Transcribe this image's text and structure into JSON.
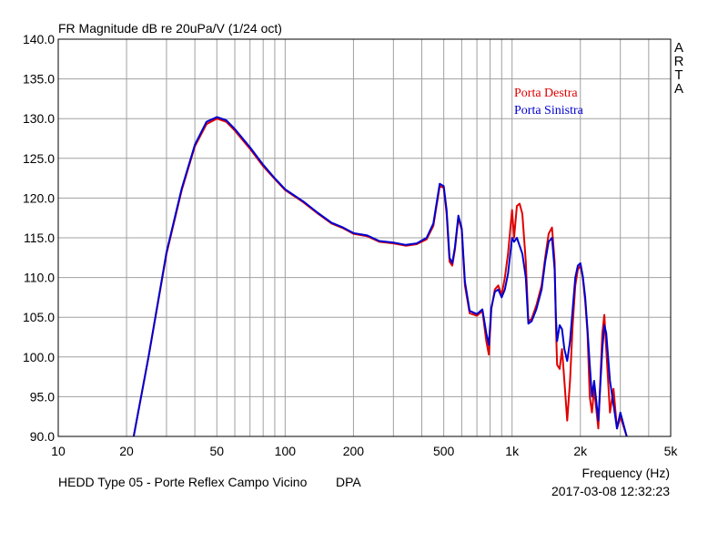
{
  "chart_data": {
    "type": "line",
    "title": "FR Magnitude dB re 20uPa/V (1/24 oct)",
    "xlabel": "Frequency (Hz)",
    "ylabel": "",
    "x_scale": "log",
    "xlim": [
      10,
      5000
    ],
    "ylim": [
      90,
      140
    ],
    "x_ticks": [
      10,
      20,
      50,
      100,
      200,
      500,
      1000,
      2000,
      5000
    ],
    "x_tick_labels": [
      "10",
      "20",
      "50",
      "100",
      "200",
      "500",
      "1k",
      "2k",
      "5k"
    ],
    "y_ticks": [
      90,
      95,
      100,
      105,
      110,
      115,
      120,
      125,
      130,
      135,
      140
    ],
    "y_tick_labels": [
      "90.0",
      "95.0",
      "100.0",
      "105.0",
      "110.0",
      "115.0",
      "120.0",
      "125.0",
      "130.0",
      "135.0",
      "140.0"
    ],
    "grid": true,
    "legend_position": "top-right",
    "series": [
      {
        "name": "Porta Destra",
        "color": "#e00000",
        "points": [
          [
            21.5,
            90
          ],
          [
            25,
            100
          ],
          [
            30,
            113
          ],
          [
            35,
            121
          ],
          [
            40,
            126.5
          ],
          [
            45,
            129.3
          ],
          [
            50,
            130
          ],
          [
            55,
            129.6
          ],
          [
            60,
            128.5
          ],
          [
            70,
            126.2
          ],
          [
            80,
            124
          ],
          [
            90,
            122.4
          ],
          [
            100,
            121
          ],
          [
            120,
            119.5
          ],
          [
            140,
            118
          ],
          [
            160,
            116.8
          ],
          [
            180,
            116.2
          ],
          [
            200,
            115.5
          ],
          [
            230,
            115.2
          ],
          [
            260,
            114.5
          ],
          [
            300,
            114.3
          ],
          [
            340,
            114
          ],
          [
            380,
            114.2
          ],
          [
            420,
            114.8
          ],
          [
            450,
            116.5
          ],
          [
            480,
            121.5
          ],
          [
            500,
            121.3
          ],
          [
            515,
            118
          ],
          [
            530,
            112
          ],
          [
            545,
            111.5
          ],
          [
            560,
            113.5
          ],
          [
            580,
            117.5
          ],
          [
            600,
            116
          ],
          [
            620,
            109
          ],
          [
            650,
            105.5
          ],
          [
            700,
            105.2
          ],
          [
            740,
            105.8
          ],
          [
            770,
            102
          ],
          [
            790,
            100.3
          ],
          [
            810,
            106
          ],
          [
            840,
            108.5
          ],
          [
            870,
            109
          ],
          [
            900,
            107.8
          ],
          [
            930,
            110
          ],
          [
            960,
            113
          ],
          [
            1000,
            118.5
          ],
          [
            1020,
            115
          ],
          [
            1050,
            119
          ],
          [
            1080,
            119.3
          ],
          [
            1110,
            118
          ],
          [
            1150,
            112
          ],
          [
            1180,
            104.5
          ],
          [
            1220,
            104.8
          ],
          [
            1280,
            106.5
          ],
          [
            1350,
            109
          ],
          [
            1400,
            112.5
          ],
          [
            1450,
            115.5
          ],
          [
            1500,
            116.3
          ],
          [
            1540,
            112
          ],
          [
            1560,
            104
          ],
          [
            1580,
            99
          ],
          [
            1620,
            98.5
          ],
          [
            1660,
            101
          ],
          [
            1700,
            97
          ],
          [
            1750,
            92
          ],
          [
            1800,
            97
          ],
          [
            1850,
            104
          ],
          [
            1900,
            109
          ],
          [
            1950,
            111
          ],
          [
            2000,
            111.5
          ],
          [
            2050,
            110
          ],
          [
            2100,
            107
          ],
          [
            2150,
            103
          ],
          [
            2200,
            95
          ],
          [
            2250,
            93
          ],
          [
            2300,
            96
          ],
          [
            2400,
            91
          ],
          [
            2500,
            103
          ],
          [
            2550,
            105.3
          ],
          [
            2600,
            101
          ],
          [
            2700,
            93
          ],
          [
            2800,
            96
          ],
          [
            2900,
            91
          ],
          [
            3000,
            92.5
          ],
          [
            3200,
            90
          ]
        ]
      },
      {
        "name": "Porta Sinistra",
        "color": "#0000d0",
        "points": [
          [
            21.5,
            90
          ],
          [
            25,
            100
          ],
          [
            30,
            113.2
          ],
          [
            35,
            121.2
          ],
          [
            40,
            126.7
          ],
          [
            45,
            129.6
          ],
          [
            50,
            130.2
          ],
          [
            55,
            129.8
          ],
          [
            60,
            128.7
          ],
          [
            70,
            126.4
          ],
          [
            80,
            124.2
          ],
          [
            90,
            122.5
          ],
          [
            100,
            121.1
          ],
          [
            120,
            119.6
          ],
          [
            140,
            118.1
          ],
          [
            160,
            116.9
          ],
          [
            180,
            116.3
          ],
          [
            200,
            115.6
          ],
          [
            230,
            115.3
          ],
          [
            260,
            114.6
          ],
          [
            300,
            114.4
          ],
          [
            340,
            114.1
          ],
          [
            380,
            114.3
          ],
          [
            420,
            115
          ],
          [
            450,
            116.8
          ],
          [
            480,
            121.8
          ],
          [
            500,
            121.5
          ],
          [
            515,
            118.5
          ],
          [
            530,
            112.5
          ],
          [
            545,
            111.8
          ],
          [
            560,
            113.8
          ],
          [
            580,
            117.8
          ],
          [
            600,
            116.2
          ],
          [
            620,
            109.5
          ],
          [
            650,
            105.8
          ],
          [
            700,
            105.4
          ],
          [
            740,
            106
          ],
          [
            770,
            103
          ],
          [
            790,
            101.5
          ],
          [
            810,
            106.2
          ],
          [
            840,
            108.2
          ],
          [
            870,
            108.5
          ],
          [
            900,
            107.5
          ],
          [
            930,
            108.5
          ],
          [
            960,
            110.5
          ],
          [
            1000,
            115
          ],
          [
            1020,
            114.5
          ],
          [
            1050,
            115
          ],
          [
            1080,
            114
          ],
          [
            1110,
            113
          ],
          [
            1150,
            110
          ],
          [
            1180,
            104.2
          ],
          [
            1220,
            104.5
          ],
          [
            1280,
            106
          ],
          [
            1350,
            108.5
          ],
          [
            1400,
            112
          ],
          [
            1450,
            114.5
          ],
          [
            1500,
            115
          ],
          [
            1540,
            111
          ],
          [
            1560,
            105
          ],
          [
            1580,
            102
          ],
          [
            1620,
            104
          ],
          [
            1660,
            103.5
          ],
          [
            1700,
            101
          ],
          [
            1750,
            99.5
          ],
          [
            1800,
            102
          ],
          [
            1850,
            106
          ],
          [
            1900,
            110
          ],
          [
            1950,
            111.5
          ],
          [
            2000,
            111.8
          ],
          [
            2050,
            110.2
          ],
          [
            2100,
            107.5
          ],
          [
            2150,
            103.5
          ],
          [
            2200,
            99
          ],
          [
            2250,
            95
          ],
          [
            2300,
            97
          ],
          [
            2400,
            92
          ],
          [
            2500,
            101
          ],
          [
            2550,
            104
          ],
          [
            2600,
            103
          ],
          [
            2700,
            97
          ],
          [
            2800,
            94
          ],
          [
            2900,
            91
          ],
          [
            3000,
            93
          ],
          [
            3200,
            90
          ]
        ]
      }
    ]
  },
  "arta_label": [
    "A",
    "R",
    "T",
    "A"
  ],
  "footer": {
    "measurement": "HEDD Type 05 - Porte Reflex Campo Vicino",
    "mode": "DPA",
    "timestamp": "2017-03-08  12:32:23"
  }
}
